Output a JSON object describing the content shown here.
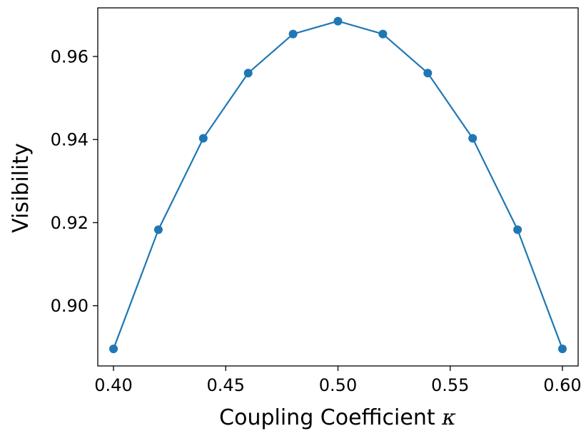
{
  "chart_data": {
    "type": "line",
    "title": "",
    "xlabel": "Coupling Coefficient",
    "xlabel_symbol": "κ",
    "ylabel": "Visibility",
    "xlim": [
      0.393,
      0.607
    ],
    "ylim": [
      0.8855,
      0.9717
    ],
    "grid": false,
    "xticks": [
      0.4,
      0.45,
      0.5,
      0.55,
      0.6
    ],
    "xtick_labels": [
      "0.40",
      "0.45",
      "0.50",
      "0.55",
      "0.60"
    ],
    "yticks": [
      0.9,
      0.92,
      0.94,
      0.96
    ],
    "ytick_labels": [
      "0.90",
      "0.92",
      "0.94",
      "0.96"
    ],
    "color": "#1f77b4",
    "marker": "circle",
    "series": [
      {
        "x": [
          0.4,
          0.42,
          0.44,
          0.46,
          0.48,
          0.5,
          0.52,
          0.54,
          0.56,
          0.58,
          0.6
        ],
        "values": [
          0.8896,
          0.9183,
          0.9403,
          0.956,
          0.9654,
          0.9685,
          0.9654,
          0.956,
          0.9403,
          0.9183,
          0.8896
        ]
      }
    ]
  }
}
